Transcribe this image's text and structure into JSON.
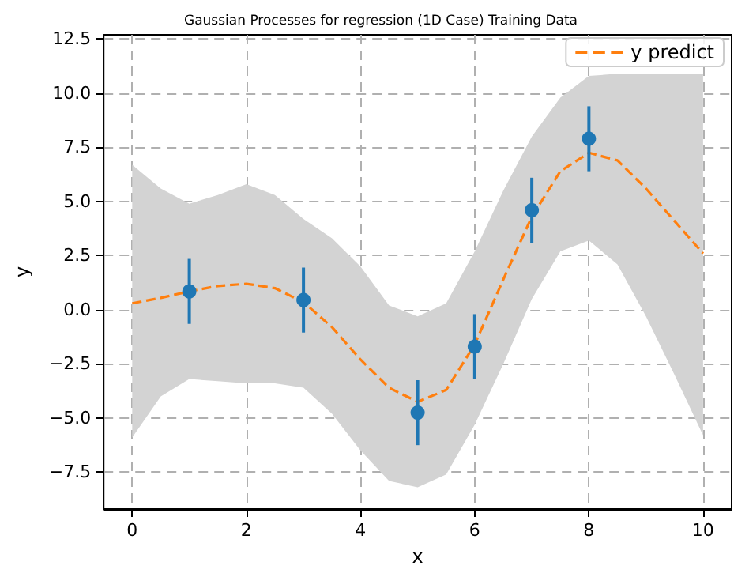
{
  "chart_data": {
    "type": "line",
    "title": "Gaussian Processes for regression (1D Case) Training Data",
    "xlabel": "x",
    "ylabel": "y",
    "xlim": [
      -0.5,
      10.5
    ],
    "xticks": [
      0,
      2,
      4,
      6,
      8,
      10
    ],
    "ylim": [
      -9.2,
      12.7
    ],
    "yticks": [
      {
        "value": -7.5,
        "label": "−7.5"
      },
      {
        "value": -5,
        "label": "−5.0"
      },
      {
        "value": -2.5,
        "label": "−2.5"
      },
      {
        "value": 0,
        "label": "0.0"
      },
      {
        "value": 2.5,
        "label": "2.5"
      },
      {
        "value": 5,
        "label": "5.0"
      },
      {
        "value": 7.5,
        "label": "7.5"
      },
      {
        "value": 10,
        "label": "10.0"
      },
      {
        "value": 12.5,
        "label": "12.5"
      }
    ],
    "grid": true,
    "legend": "top right",
    "series": [
      {
        "type": "scatter",
        "color": "#1f77b4",
        "marker": "circle",
        "x": [
          1,
          3,
          5,
          6,
          7,
          8
        ],
        "values": [
          0.85,
          0.45,
          -4.75,
          -1.7,
          4.6,
          7.9
        ],
        "errors": [
          1.5,
          1.5,
          1.5,
          1.5,
          1.5,
          1.5
        ]
      },
      {
        "type": "line",
        "name": "y predict",
        "color": "#ff7f0e",
        "line_style": "dashed",
        "marker": "none",
        "x": [
          0,
          0.5,
          1,
          1.5,
          2,
          2.5,
          3,
          3.5,
          4,
          4.5,
          5,
          5.5,
          6,
          6.5,
          7,
          7.5,
          8,
          8.5,
          9,
          9.5,
          10
        ],
        "values": [
          0.3,
          0.55,
          0.85,
          1.1,
          1.2,
          1.0,
          0.35,
          -0.8,
          -2.3,
          -3.6,
          -4.25,
          -3.7,
          -1.6,
          1.4,
          4.3,
          6.4,
          7.25,
          6.9,
          5.6,
          4.1,
          2.6
        ],
        "upper": [
          6.7,
          5.6,
          4.9,
          5.3,
          5.8,
          5.3,
          4.2,
          3.3,
          2.0,
          0.2,
          -0.3,
          0.3,
          2.7,
          5.5,
          8.0,
          9.8,
          10.8,
          10.9,
          10.9,
          10.9,
          10.9
        ],
        "lower": [
          -5.9,
          -4.0,
          -3.2,
          -3.3,
          -3.4,
          -3.4,
          -3.6,
          -4.8,
          -6.5,
          -7.9,
          -8.2,
          -7.6,
          -5.3,
          -2.5,
          0.5,
          2.7,
          3.2,
          2.1,
          -0.3,
          -3.0,
          -5.8
        ]
      }
    ]
  }
}
